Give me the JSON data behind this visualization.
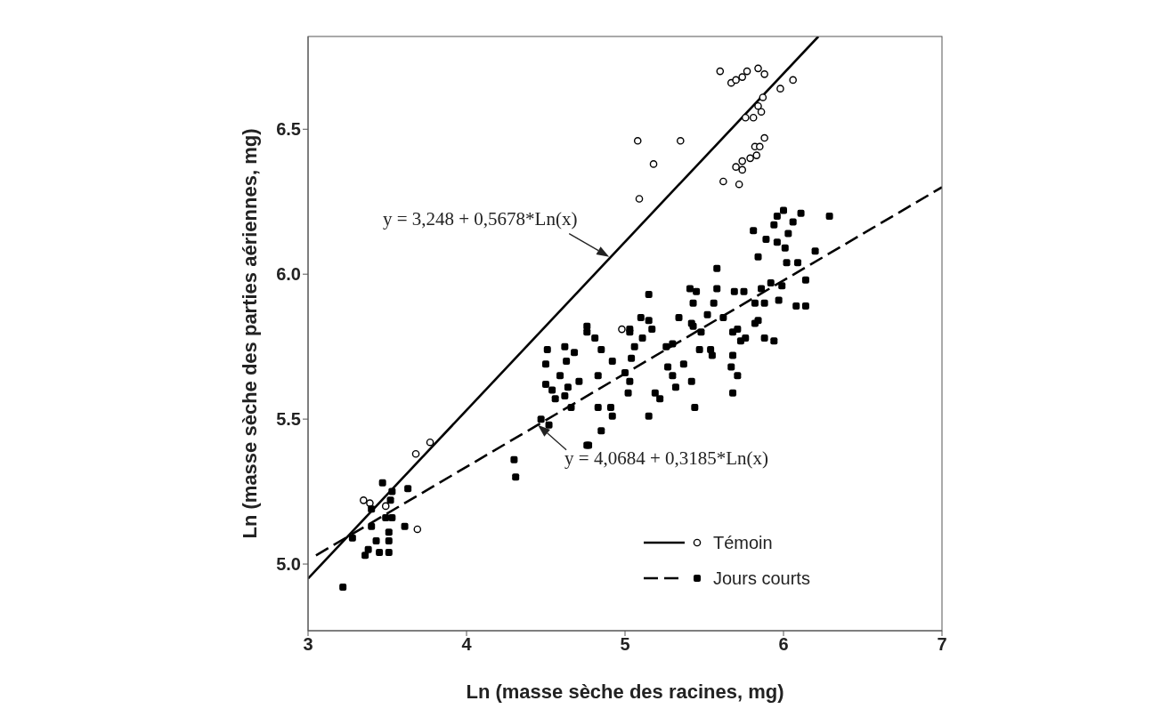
{
  "chart_data": {
    "type": "scatter",
    "xlabel": "Ln (masse sèche des racines, mg)",
    "ylabel": "Ln (masse sèche des parties aériennes, mg)",
    "xlim": [
      3,
      7
    ],
    "ylim": [
      4.77,
      6.82
    ],
    "xticks": [
      3,
      4,
      5,
      6,
      7
    ],
    "yticks": [
      {
        "value": 5,
        "label": "5.0"
      },
      {
        "value": 5.5,
        "label": "5.5"
      },
      {
        "value": 6,
        "label": "6.0"
      },
      {
        "value": 6.5,
        "label": "6.5"
      }
    ],
    "grid": false,
    "legend": "bottom right",
    "annotations": [
      {
        "text": "y = 3,248 + 0,5678*Ln(x)",
        "x": 4.9,
        "y": 6.06
      },
      {
        "text": "y = 4,0684 + 0,3185*Ln(x)",
        "x": 4.45,
        "y": 5.48
      }
    ],
    "series": [
      {
        "name": "Témoin",
        "type": "scatter",
        "marker": "circle",
        "color": "#000000",
        "x": [
          5.6,
          5.67,
          5.7,
          5.74,
          5.77,
          5.84,
          5.88,
          5.98,
          6.06,
          5.87,
          5.84,
          5.86,
          5.76,
          5.81,
          5.08,
          5.35,
          5.88,
          5.18,
          5.82,
          5.85,
          5.79,
          5.83,
          5.74,
          5.7,
          5.74,
          5.62,
          5.72,
          5.09,
          4.98,
          3.77,
          3.68,
          3.35,
          3.39,
          3.49,
          3.69
        ],
        "values": [
          6.7,
          6.66,
          6.67,
          6.68,
          6.7,
          6.71,
          6.69,
          6.64,
          6.67,
          6.61,
          6.58,
          6.56,
          6.54,
          6.54,
          6.46,
          6.46,
          6.47,
          6.38,
          6.44,
          6.44,
          6.4,
          6.41,
          6.39,
          6.37,
          6.36,
          6.32,
          6.31,
          6.26,
          5.81,
          5.42,
          5.38,
          5.22,
          5.21,
          5.2,
          5.12
        ]
      },
      {
        "name": "Jours courts",
        "type": "scatter",
        "marker": "square",
        "color": "#000000",
        "x": [
          3.22,
          3.28,
          3.36,
          3.38,
          3.4,
          3.4,
          3.43,
          3.45,
          3.51,
          3.51,
          3.51,
          3.47,
          3.53,
          3.52,
          3.49,
          3.53,
          3.61,
          3.63,
          4.3,
          4.31,
          4.52,
          4.47,
          4.51,
          4.5,
          4.5,
          4.54,
          4.56,
          4.59,
          4.62,
          4.63,
          4.64,
          4.62,
          4.66,
          4.68,
          4.71,
          4.76,
          4.77,
          4.85,
          4.83,
          4.91,
          4.92,
          4.83,
          4.92,
          4.85,
          4.76,
          4.81,
          5.02,
          5.03,
          5.0,
          5.04,
          5.03,
          5.06,
          5.11,
          5.17,
          5.15,
          5.19,
          5.22,
          5.27,
          5.3,
          5.32,
          5.37,
          5.42,
          5.44,
          5.26,
          5.3,
          5.43,
          5.48,
          5.47,
          5.54,
          5.55,
          5.68,
          5.73,
          5.68,
          5.67,
          5.71,
          5.68,
          5.76,
          5.82,
          5.88,
          5.94,
          6.0,
          6.11,
          6.29,
          5.96,
          5.94,
          6.06,
          5.81,
          6.03,
          5.89,
          5.96,
          6.01,
          5.84,
          6.02,
          6.09,
          6.2,
          6.14,
          5.58,
          5.15,
          5.41,
          5.45,
          5.58,
          5.69,
          5.75,
          5.86,
          5.92,
          5.99,
          5.82,
          5.88,
          5.97,
          6.08,
          6.14,
          5.56,
          5.43,
          5.34,
          5.42,
          5.52,
          5.62,
          5.71,
          5.84,
          5.1,
          5.15,
          5.03,
          4.76
        ],
        "values": [
          4.92,
          5.09,
          5.03,
          5.05,
          5.13,
          5.19,
          5.08,
          5.04,
          5.04,
          5.08,
          5.11,
          5.28,
          5.25,
          5.22,
          5.16,
          5.16,
          5.13,
          5.26,
          5.36,
          5.3,
          5.48,
          5.5,
          5.74,
          5.69,
          5.62,
          5.6,
          5.57,
          5.65,
          5.75,
          5.7,
          5.61,
          5.58,
          5.54,
          5.73,
          5.63,
          5.41,
          5.41,
          5.46,
          5.54,
          5.54,
          5.51,
          5.65,
          5.7,
          5.74,
          5.8,
          5.78,
          5.59,
          5.63,
          5.66,
          5.71,
          5.8,
          5.75,
          5.78,
          5.81,
          5.51,
          5.59,
          5.57,
          5.68,
          5.65,
          5.61,
          5.69,
          5.63,
          5.54,
          5.75,
          5.76,
          5.82,
          5.8,
          5.74,
          5.74,
          5.72,
          5.8,
          5.77,
          5.72,
          5.68,
          5.65,
          5.59,
          5.78,
          5.83,
          5.78,
          5.77,
          6.22,
          6.21,
          6.2,
          6.2,
          6.17,
          6.18,
          6.15,
          6.14,
          6.12,
          6.11,
          6.09,
          6.06,
          6.04,
          6.04,
          6.08,
          5.98,
          6.02,
          5.93,
          5.95,
          5.94,
          5.95,
          5.94,
          5.94,
          5.95,
          5.97,
          5.96,
          5.9,
          5.9,
          5.91,
          5.89,
          5.89,
          5.9,
          5.9,
          5.85,
          5.83,
          5.86,
          5.85,
          5.81,
          5.84,
          5.85,
          5.84,
          5.81,
          5.82
        ]
      },
      {
        "type": "line",
        "line_style": "solid",
        "color": "#000000",
        "x": [
          3,
          6.22
        ],
        "values": [
          4.95,
          6.82
        ]
      },
      {
        "type": "line",
        "line_style": "dashed",
        "color": "#000000",
        "x": [
          3.05,
          7
        ],
        "values": [
          5.03,
          6.3
        ]
      }
    ]
  }
}
